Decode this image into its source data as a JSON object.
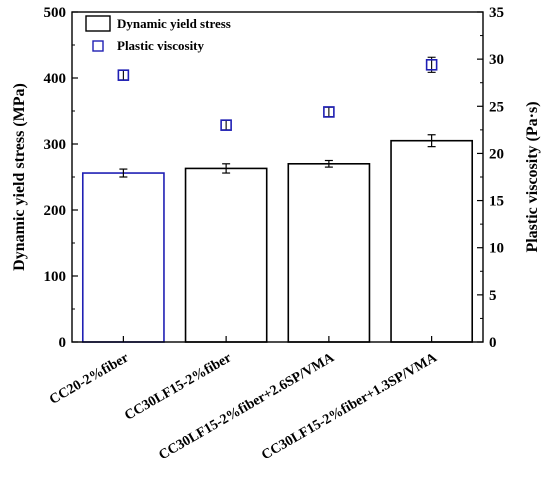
{
  "chart_data": {
    "type": "bar",
    "categories": [
      "CC20-2%fiber",
      "CC30LF15-2%fiber",
      "CC30LF15-2%fiber+2.6SP/VMA",
      "CC30LF15-2%fiber+1.3SP/VMA"
    ],
    "series": [
      {
        "name": "Dynamic yield stress",
        "axis": "left",
        "mark": "bar",
        "values": [
          256,
          263,
          270,
          305
        ],
        "errors": [
          6,
          7,
          5,
          9
        ],
        "highlight_color": "#1f1fb4",
        "highlight_index": 0
      },
      {
        "name": "Plastic viscosity",
        "axis": "right",
        "mark": "open-square",
        "values": [
          28.3,
          23.0,
          24.4,
          29.4
        ],
        "errors": [
          0.5,
          0.5,
          0.5,
          0.8
        ],
        "color": "#1f1fb4"
      }
    ],
    "ylabel": "Dynamic yield stress (MPa)",
    "ylim": [
      0,
      500
    ],
    "yticks": [
      0,
      100,
      200,
      300,
      400,
      500
    ],
    "y2label": "Plastic viscosity (Pa·s)",
    "y2lim": [
      0,
      35
    ],
    "y2ticks": [
      0,
      5,
      10,
      15,
      20,
      25,
      30,
      35
    ],
    "xlabel": "",
    "grid": false,
    "legend_position": "top-left"
  }
}
